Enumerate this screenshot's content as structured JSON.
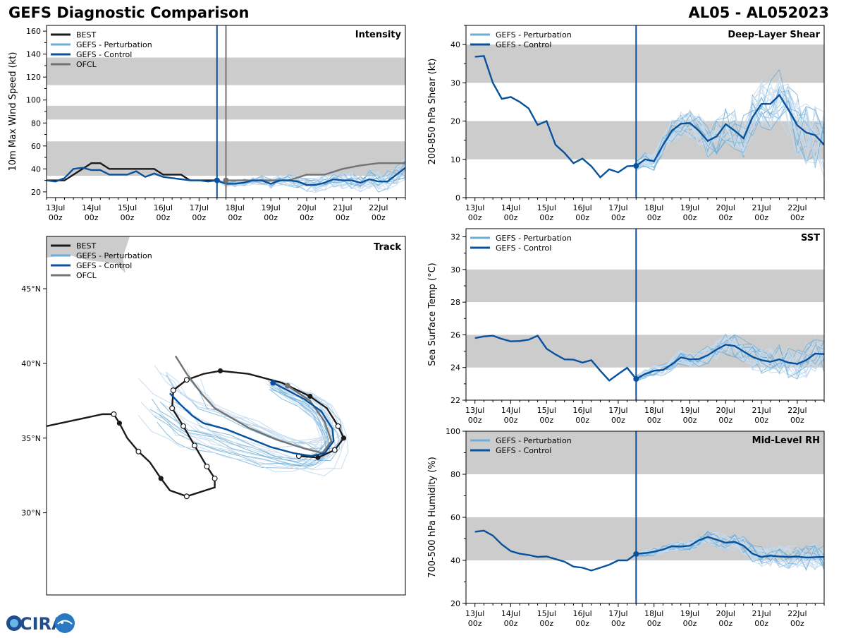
{
  "header": {
    "title": "GEFS Diagnostic Comparison",
    "storm_id": "AL05 - AL052023"
  },
  "logo": {
    "text": "CIRA"
  },
  "colors": {
    "best": "#1a1a1a",
    "perturbation": "#6baed6",
    "perturbation_light": "#c6dbef",
    "control": "#08519c",
    "ofcl": "#737373",
    "band": "#cccccc"
  },
  "time_axis": {
    "labels": [
      {
        "day": "13Jul",
        "hour": "00z",
        "t": 0
      },
      {
        "day": "14Jul",
        "hour": "00z",
        "t": 1
      },
      {
        "day": "15Jul",
        "hour": "00z",
        "t": 2
      },
      {
        "day": "16Jul",
        "hour": "00z",
        "t": 3
      },
      {
        "day": "17Jul",
        "hour": "00z",
        "t": 4
      },
      {
        "day": "18Jul",
        "hour": "00z",
        "t": 5
      },
      {
        "day": "19Jul",
        "hour": "00z",
        "t": 6
      },
      {
        "day": "20Jul",
        "hour": "00z",
        "t": 7
      },
      {
        "day": "21Jul",
        "hour": "00z",
        "t": 8
      },
      {
        "day": "22Jul",
        "hour": "00z",
        "t": 9
      }
    ],
    "xlim": [
      -0.25,
      9.75
    ],
    "init_time": 4.5,
    "ofcl_init_time": 4.75
  },
  "chart_data": [
    {
      "id": "intensity",
      "type": "line",
      "title": "Intensity",
      "ylabel": "10m Max Wind Speed (kt)",
      "ylim": [
        15,
        165
      ],
      "yticks": [
        20,
        40,
        60,
        80,
        100,
        120,
        140,
        160
      ],
      "bands": [
        [
          34,
          64
        ],
        [
          83,
          95
        ],
        [
          113,
          137
        ]
      ],
      "legend": [
        "BEST",
        "GEFS - Perturbation",
        "GEFS - Control",
        "OFCL"
      ],
      "best": {
        "x": [
          -0.25,
          0,
          0.25,
          0.5,
          0.75,
          1,
          1.25,
          1.5,
          1.75,
          2,
          2.25,
          2.5,
          2.75,
          3,
          3.25,
          3.5,
          3.75,
          4,
          4.25,
          4.5
        ],
        "y": [
          30,
          30,
          30,
          35,
          40,
          45,
          45,
          40,
          40,
          40,
          40,
          40,
          40,
          35,
          35,
          35,
          30,
          30,
          30,
          30
        ]
      },
      "control": {
        "x": [
          -0.25,
          0,
          0.25,
          0.5,
          0.75,
          1,
          1.25,
          1.5,
          1.75,
          2,
          2.25,
          2.5,
          2.75,
          3,
          3.25,
          3.5,
          3.75,
          4,
          4.25,
          4.5,
          4.75,
          5,
          5.25,
          5.5,
          5.75,
          6,
          6.25,
          6.5,
          6.75,
          7,
          7.25,
          7.5,
          7.75,
          8,
          8.25,
          8.5,
          8.75,
          9,
          9.25,
          9.5,
          9.75
        ],
        "y": [
          30,
          29,
          32,
          40,
          41,
          39,
          39,
          35,
          35,
          35,
          38,
          33,
          36,
          33,
          32,
          31,
          30,
          30,
          29,
          30,
          27,
          27,
          28,
          30,
          30,
          27,
          30,
          30,
          29,
          26,
          26,
          28,
          31,
          30,
          30,
          28,
          31,
          29,
          29,
          35,
          41
        ]
      },
      "ofcl": {
        "x": [
          4.75,
          5,
          5.5,
          6,
          6.5,
          7,
          7.5,
          8,
          8.5,
          9,
          9.5,
          9.75
        ],
        "y": [
          30,
          30,
          30,
          30,
          30,
          35,
          35,
          40,
          43,
          45,
          45,
          45
        ]
      },
      "marker": {
        "x": 4.5,
        "y": 30
      }
    },
    {
      "id": "shear",
      "type": "line",
      "title": "Deep-Layer Shear",
      "ylabel": "200-850 hPa Shear (kt)",
      "ylim": [
        0,
        45
      ],
      "yticks": [
        0,
        10,
        20,
        30,
        40
      ],
      "bands": [
        [
          10,
          20
        ],
        [
          30,
          40
        ]
      ],
      "legend": [
        "GEFS - Perturbation",
        "GEFS - Control"
      ],
      "control": {
        "x": [
          0,
          0.25,
          0.5,
          0.75,
          1,
          1.25,
          1.5,
          1.75,
          2,
          2.25,
          2.5,
          2.75,
          3,
          3.25,
          3.5,
          3.75,
          4,
          4.25,
          4.5,
          4.75,
          5,
          5.25,
          5.5,
          5.75,
          6,
          6.25,
          6.5,
          6.75,
          7,
          7.25,
          7.5,
          7.75,
          8,
          8.25,
          8.5,
          8.75,
          9,
          9.25,
          9.5,
          9.75
        ],
        "y": [
          36.8,
          37,
          30,
          25.8,
          26.3,
          25,
          23.3,
          19,
          20,
          13.8,
          11.7,
          9,
          10.2,
          8.2,
          5.3,
          7.4,
          6.6,
          8.2,
          8.3,
          10,
          9.5,
          13.7,
          17.5,
          19.3,
          19.5,
          17.5,
          14.8,
          16,
          19.2,
          17.5,
          15.5,
          21,
          24.5,
          24.5,
          26.8,
          23,
          18.9,
          17,
          16.3,
          13.8
        ]
      },
      "marker": {
        "x": 4.5,
        "y": 8.3
      }
    },
    {
      "id": "sst",
      "type": "line",
      "title": "SST",
      "ylabel": "Sea Surface Temp (°C)",
      "ylim": [
        22,
        32.5
      ],
      "yticks": [
        22,
        24,
        26,
        28,
        30,
        32
      ],
      "bands": [
        [
          24,
          26
        ],
        [
          28,
          30
        ]
      ],
      "legend": [
        "GEFS - Perturbation",
        "GEFS - Control"
      ],
      "control": {
        "x": [
          0,
          0.25,
          0.5,
          0.75,
          1,
          1.25,
          1.5,
          1.75,
          2,
          2.25,
          2.5,
          2.75,
          3,
          3.25,
          3.5,
          3.75,
          4,
          4.25,
          4.5,
          4.75,
          5,
          5.25,
          5.5,
          5.75,
          6,
          6.25,
          6.5,
          6.75,
          7,
          7.25,
          7.5,
          7.75,
          8,
          8.25,
          8.5,
          8.75,
          9,
          9.25,
          9.5,
          9.75
        ],
        "y": [
          25.8,
          25.9,
          25.95,
          25.75,
          25.6,
          25.62,
          25.7,
          25.95,
          25.15,
          24.8,
          24.5,
          24.48,
          24.3,
          24.45,
          23.8,
          23.2,
          23.6,
          23.98,
          23.3,
          23.6,
          23.8,
          23.85,
          24.2,
          24.62,
          24.5,
          24.52,
          24.75,
          25.1,
          25.4,
          25.32,
          24.98,
          24.65,
          24.45,
          24.35,
          24.5,
          24.3,
          24.22,
          24.45,
          24.85,
          24.82
        ]
      },
      "marker": {
        "x": 4.5,
        "y": 23.3
      }
    },
    {
      "id": "rh",
      "type": "line",
      "title": "Mid-Level RH",
      "ylabel": "700-500 hPa Humidity (%)",
      "ylim": [
        20,
        100
      ],
      "yticks": [
        20,
        40,
        60,
        80,
        100
      ],
      "bands": [
        [
          40,
          60
        ],
        [
          80,
          100
        ]
      ],
      "legend": [
        "GEFS - Perturbation",
        "GEFS - Control"
      ],
      "control": {
        "x": [
          0,
          0.25,
          0.5,
          0.75,
          1,
          1.25,
          1.5,
          1.75,
          2,
          2.25,
          2.5,
          2.75,
          3,
          3.25,
          3.5,
          3.75,
          4,
          4.25,
          4.5,
          4.75,
          5,
          5.25,
          5.5,
          5.75,
          6,
          6.25,
          6.5,
          6.75,
          7,
          7.25,
          7.5,
          7.75,
          8,
          8.25,
          8.5,
          8.75,
          9,
          9.25,
          9.5,
          9.75
        ],
        "y": [
          53.3,
          53.8,
          51.5,
          47.4,
          44.3,
          43.1,
          42.5,
          41.6,
          41.8,
          40.6,
          39.4,
          37.1,
          36.6,
          35.3,
          36.6,
          38,
          40,
          40,
          43,
          43.4,
          44,
          45,
          46.6,
          46.4,
          46.8,
          49.3,
          50.9,
          49.6,
          48.2,
          48.6,
          46.8,
          43.1,
          41.6,
          42.2,
          41.8,
          41.6,
          41.8,
          41.3,
          41.5,
          41.6
        ]
      },
      "marker": {
        "x": 4.5,
        "y": 43
      }
    },
    {
      "id": "track",
      "type": "line",
      "title": "Track",
      "lat_ticks": [
        {
          "label": "30°N",
          "lat": 30
        },
        {
          "label": "35°N",
          "lat": 35
        },
        {
          "label": "40°N",
          "lat": 40
        },
        {
          "label": "45°N",
          "lat": 45
        }
      ],
      "legend": [
        "BEST",
        "GEFS - Perturbation",
        "GEFS - Control",
        "OFCL"
      ],
      "best": [
        [
          -62.0,
          35.8
        ],
        [
          -57.0,
          36.6
        ],
        [
          -56.0,
          36.6
        ],
        [
          -55.5,
          36.0
        ],
        [
          -54.8,
          35.0
        ],
        [
          -53.8,
          34.1
        ],
        [
          -52.8,
          33.4
        ],
        [
          -51.8,
          32.3
        ],
        [
          -51.0,
          31.5
        ],
        [
          -49.5,
          31.1
        ],
        [
          -47.0,
          31.7
        ],
        [
          -47.0,
          32.3
        ],
        [
          -47.7,
          33.1
        ],
        [
          -48.8,
          34.5
        ],
        [
          -49.8,
          35.8
        ],
        [
          -50.8,
          37.0
        ],
        [
          -50.7,
          38.2
        ],
        [
          -49.5,
          38.9
        ],
        [
          -48.0,
          39.3
        ],
        [
          -46.5,
          39.5
        ],
        [
          -44.0,
          39.3
        ],
        [
          -41.0,
          38.7
        ],
        [
          -38.5,
          37.8
        ],
        [
          -37.0,
          37.0
        ],
        [
          -36.0,
          35.8
        ],
        [
          -35.5,
          35.0
        ],
        [
          -36.3,
          34.2
        ],
        [
          -37.8,
          33.7
        ],
        [
          -39.5,
          33.8
        ]
      ],
      "best_open": [
        [
          -56.0,
          36.6
        ],
        [
          -53.8,
          34.1
        ],
        [
          -49.5,
          31.1
        ],
        [
          -47.0,
          32.3
        ],
        [
          -47.7,
          33.1
        ],
        [
          -48.8,
          34.5
        ],
        [
          -49.8,
          35.8
        ],
        [
          -50.8,
          37.0
        ],
        [
          -50.7,
          38.2
        ],
        [
          -49.5,
          38.9
        ],
        [
          -36.0,
          35.8
        ],
        [
          -36.3,
          34.2
        ],
        [
          -39.5,
          33.8
        ]
      ],
      "best_filled": [
        [
          -55.5,
          36.0
        ],
        [
          -51.8,
          32.3
        ],
        [
          -47.0,
          32.3
        ],
        [
          -50.8,
          37.0
        ],
        [
          -46.5,
          39.5
        ],
        [
          -38.5,
          37.8
        ],
        [
          -35.5,
          35.0
        ],
        [
          -37.8,
          33.7
        ]
      ],
      "control": [
        [
          -41.8,
          38.7
        ],
        [
          -40.5,
          38.2
        ],
        [
          -39.0,
          37.6
        ],
        [
          -37.5,
          36.8
        ],
        [
          -36.5,
          35.6
        ],
        [
          -36.4,
          34.8
        ],
        [
          -37.2,
          34.0
        ],
        [
          -38.4,
          33.8
        ],
        [
          -40.0,
          34.0
        ],
        [
          -42.0,
          34.4
        ],
        [
          -44.0,
          35.0
        ],
        [
          -46.0,
          35.6
        ],
        [
          -48.0,
          36.0
        ],
        [
          -49.0,
          36.5
        ],
        [
          -50.0,
          37.2
        ],
        [
          -51.0,
          38.0
        ]
      ],
      "ofcl": [
        [
          -40.5,
          38.5
        ],
        [
          -38.5,
          37.5
        ],
        [
          -37.2,
          36.1
        ],
        [
          -36.6,
          34.8
        ],
        [
          -37.4,
          34.0
        ],
        [
          -39.0,
          34.3
        ],
        [
          -41.5,
          34.9
        ],
        [
          -44.0,
          35.7
        ],
        [
          -47.0,
          37.0
        ],
        [
          -48.2,
          38.0
        ],
        [
          -49.5,
          39.3
        ],
        [
          -50.5,
          40.5
        ]
      ]
    }
  ]
}
